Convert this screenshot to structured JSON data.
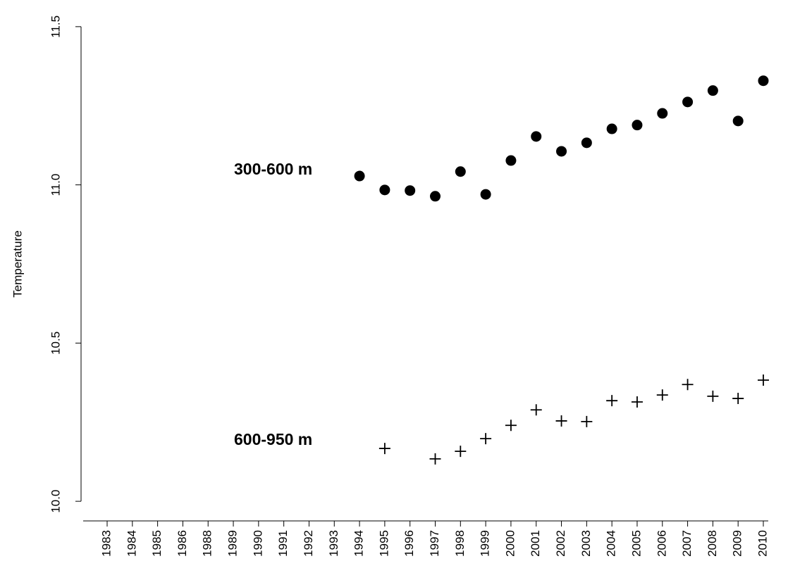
{
  "chart_data": {
    "type": "scatter",
    "y_label": "Temperature",
    "categories": [
      "1983",
      "1984",
      "1985",
      "1986",
      "1988",
      "1989",
      "1990",
      "1991",
      "1992",
      "1993",
      "1994",
      "1995",
      "1996",
      "1997",
      "1998",
      "1999",
      "2000",
      "2001",
      "2002",
      "2003",
      "2004",
      "2005",
      "2006",
      "2007",
      "2008",
      "2009",
      "2010"
    ],
    "series": [
      {
        "name": "300-600 m",
        "color": "#000000",
        "marker": "circle",
        "values": [
          null,
          null,
          null,
          null,
          null,
          null,
          null,
          null,
          null,
          null,
          11.028,
          10.984,
          10.982,
          10.964,
          11.042,
          10.97,
          11.077,
          11.153,
          11.106,
          11.133,
          11.177,
          11.189,
          11.226,
          11.262,
          11.298,
          11.202,
          11.329
        ]
      },
      {
        "name": "600-950 m",
        "color": "#000000",
        "marker": "plus",
        "values": [
          null,
          null,
          null,
          null,
          null,
          null,
          null,
          null,
          null,
          null,
          null,
          10.167,
          null,
          10.134,
          10.158,
          10.198,
          10.24,
          10.289,
          10.254,
          10.252,
          10.318,
          10.314,
          10.336,
          10.369,
          10.332,
          10.325,
          10.383
        ]
      }
    ],
    "ylim": [
      9.938,
      11.562
    ],
    "yticks": [
      {
        "value": 10,
        "label": "10.0"
      },
      10.5,
      {
        "value": 11,
        "label": "11.0"
      },
      11.5
    ]
  }
}
